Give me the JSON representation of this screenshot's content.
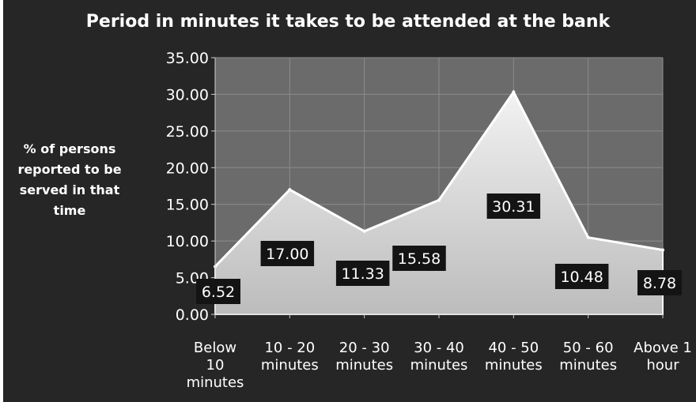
{
  "chart_data": {
    "type": "area",
    "title": "Period in minutes it takes to be attended at the bank",
    "ylabel": "% of persons reported to be served in that time",
    "xlabel": "",
    "categories": [
      "Below 10 minutes",
      "10 - 20 minutes",
      "20 - 30 minutes",
      "30 - 40 minutes",
      "40 - 50 minutes",
      "50 - 60 minutes",
      "Above 1 hour"
    ],
    "category_lines": [
      [
        "Below",
        "10",
        "minutes"
      ],
      [
        "10 - 20",
        "minutes"
      ],
      [
        "20 - 30",
        "minutes"
      ],
      [
        "30 - 40",
        "minutes"
      ],
      [
        "40 - 50",
        "minutes"
      ],
      [
        "50 - 60",
        "minutes"
      ],
      [
        "Above 1",
        "hour"
      ]
    ],
    "ylabel_lines": [
      "% of persons",
      "reported to be",
      "served in that",
      "time"
    ],
    "values": [
      6.52,
      17.0,
      11.33,
      15.58,
      30.31,
      10.48,
      8.78
    ],
    "data_labels": [
      "6.52",
      "17.00",
      "11.33",
      "15.58",
      "30.31",
      "10.48",
      "8.78"
    ],
    "ylim": [
      0,
      35
    ],
    "yticks": [
      "0.00",
      "5.00",
      "10.00",
      "15.00",
      "20.00",
      "25.00",
      "30.00",
      "35.00"
    ],
    "grid": true,
    "legend": "none",
    "colors": {
      "background": "#262626",
      "plot_area": "#6b6b6b",
      "gridline": "#8c8c8c",
      "area_fill": "#d9d9d9",
      "label_box": "#141414",
      "text": "#ffffff"
    }
  }
}
